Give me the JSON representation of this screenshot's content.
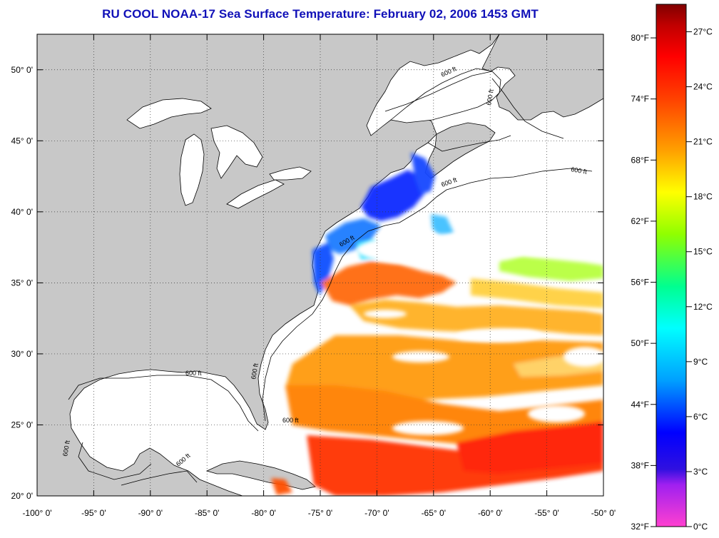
{
  "title": "RU COOL  NOAA-17  Sea Surface Temperature:  February 02, 2006 1453 GMT",
  "map": {
    "lon_range": [
      -100,
      -50
    ],
    "lat_range": [
      20,
      52.5
    ],
    "x_ticks": [
      "-100° 0'",
      "-95° 0'",
      "-90° 0'",
      "-85° 0'",
      "-80° 0'",
      "-75° 0'",
      "-70° 0'",
      "-65° 0'",
      "-60° 0'",
      "-55° 0'",
      "-50° 0'"
    ],
    "y_ticks": [
      "20° 0'",
      "25° 0'",
      "30° 0'",
      "35° 0'",
      "40° 0'",
      "45° 0'",
      "50° 0'"
    ],
    "grid": "dotted",
    "land_color": "#c8c8c8",
    "no_data_color": "#ffffff",
    "isobath_label": "600 ft"
  },
  "colorbar": {
    "fahrenheit_labels": [
      "80°F",
      "74°F",
      "68°F",
      "62°F",
      "56°F",
      "50°F",
      "44°F",
      "38°F",
      "32°F"
    ],
    "celsius_labels": [
      "27°C",
      "24°C",
      "21°C",
      "18°C",
      "15°C",
      "12°C",
      "9°C",
      "6°C",
      "3°C",
      "0°C"
    ],
    "range_celsius": [
      0,
      28
    ],
    "colors": [
      "#ff40c8",
      "#8000ff",
      "#0000ff",
      "#00a0ff",
      "#00ffff",
      "#00ff80",
      "#80ff00",
      "#ffff00",
      "#ffa000",
      "#ff4000",
      "#ff0000",
      "#b00000",
      "#800000"
    ]
  }
}
